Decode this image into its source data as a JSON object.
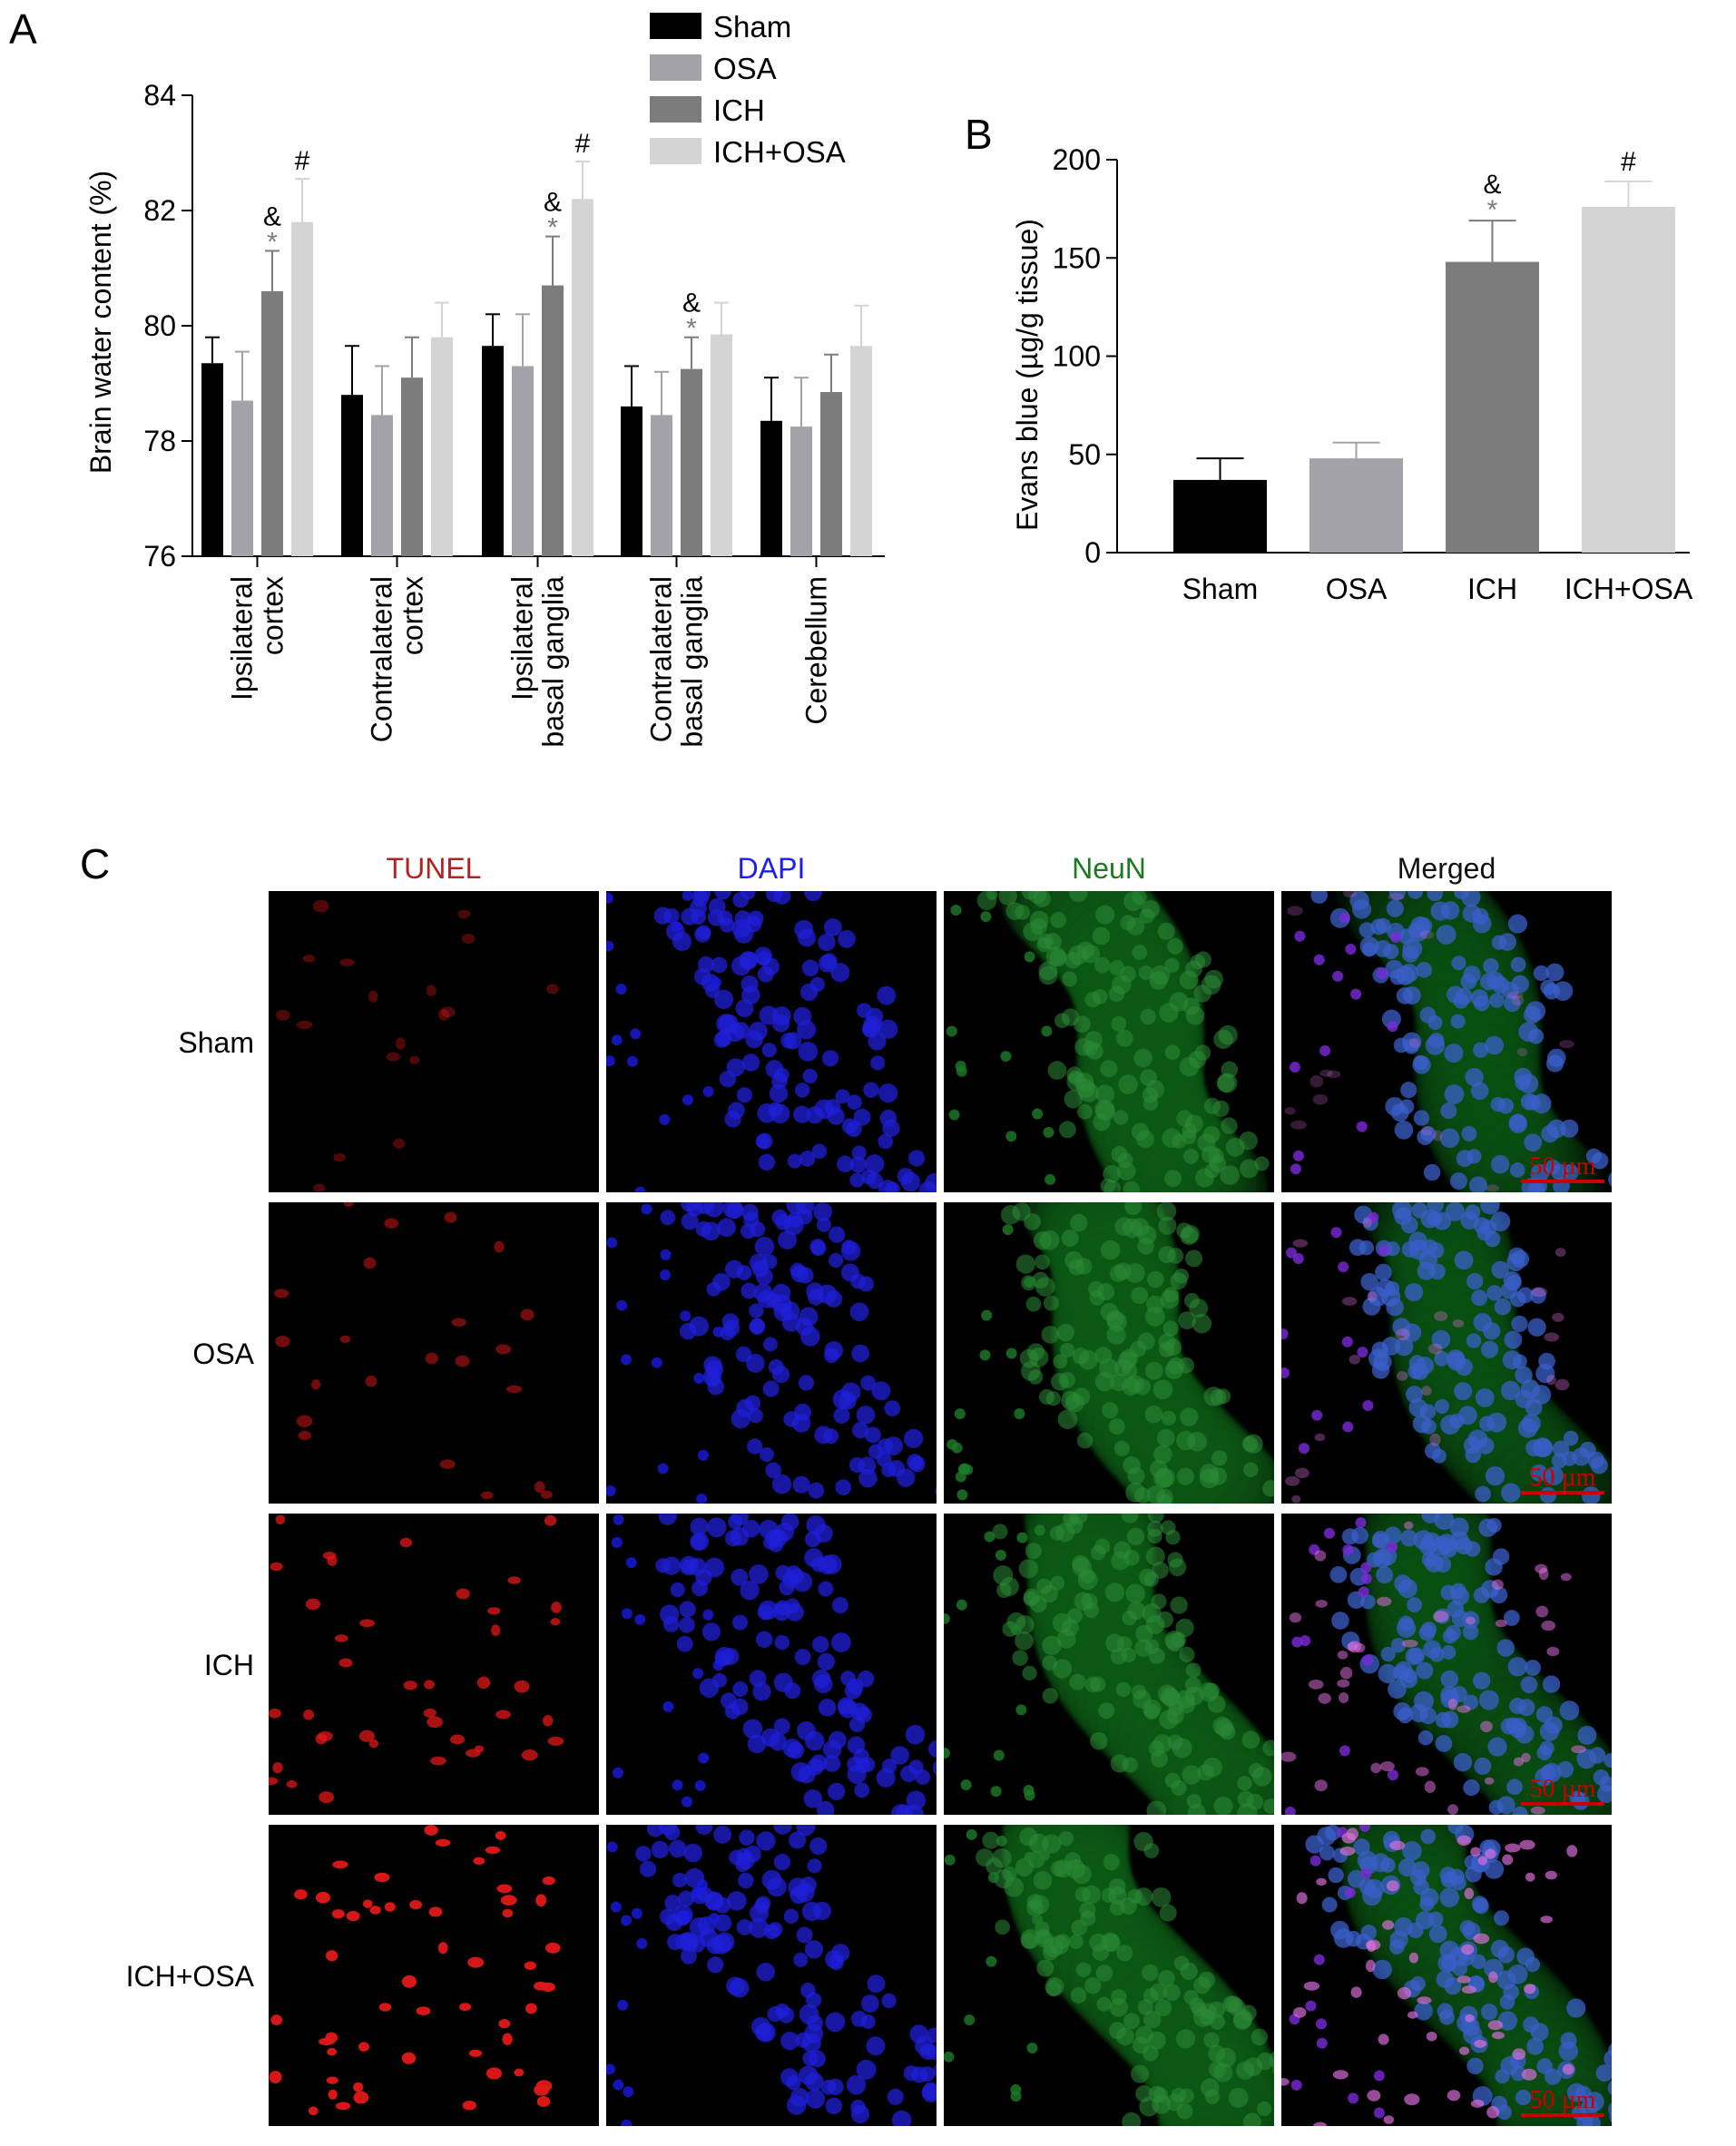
{
  "panels": {
    "A": "A",
    "B": "B",
    "C": "C"
  },
  "colors": {
    "Sham": "#000000",
    "OSA": "#a2a2a8",
    "ICH": "#7c7c7c",
    "ICH+OSA": "#d4d4d4"
  },
  "chart_data": [
    {
      "panel": "A",
      "type": "bar",
      "ylabel": "Brain water content (%)",
      "xlabel": "",
      "ylim": [
        76,
        84
      ],
      "yticks": [
        76,
        78,
        80,
        82,
        84
      ],
      "legend_position": "top-right",
      "categories": [
        [
          "Ipsilateral",
          "cortex"
        ],
        [
          "Contralateral",
          "cortex"
        ],
        [
          "Ipsilateral",
          "basal ganglia"
        ],
        [
          "Contralateral",
          "basal ganglia"
        ],
        [
          "Cerebellum"
        ]
      ],
      "series": [
        {
          "name": "Sham",
          "values": [
            79.35,
            78.8,
            79.65,
            78.6,
            78.35
          ],
          "error": [
            0.45,
            0.85,
            0.55,
            0.7,
            0.75
          ]
        },
        {
          "name": "OSA",
          "values": [
            78.7,
            78.45,
            79.3,
            78.45,
            78.25
          ],
          "error": [
            0.85,
            0.85,
            0.9,
            0.75,
            0.85
          ]
        },
        {
          "name": "ICH",
          "values": [
            80.6,
            79.1,
            80.7,
            79.25,
            78.85
          ],
          "error": [
            0.7,
            0.7,
            0.85,
            0.55,
            0.65
          ]
        },
        {
          "name": "ICH+OSA",
          "values": [
            81.8,
            79.8,
            82.2,
            79.85,
            79.65
          ],
          "error": [
            0.75,
            0.6,
            0.65,
            0.55,
            0.7
          ]
        }
      ],
      "annotations": [
        {
          "category": 0,
          "series": 2,
          "marks": [
            "&",
            "*"
          ]
        },
        {
          "category": 0,
          "series": 3,
          "marks": [
            "#"
          ]
        },
        {
          "category": 2,
          "series": 2,
          "marks": [
            "&",
            "*"
          ]
        },
        {
          "category": 2,
          "series": 3,
          "marks": [
            "#"
          ]
        },
        {
          "category": 3,
          "series": 2,
          "marks": [
            "&",
            "*"
          ]
        }
      ]
    },
    {
      "panel": "B",
      "type": "bar",
      "ylabel": "Evans blue (µg/g tissue)",
      "xlabel": "",
      "ylim": [
        0,
        200
      ],
      "yticks": [
        0,
        50,
        100,
        150,
        200
      ],
      "categories": [
        "Sham",
        "OSA",
        "ICH",
        "ICH+OSA"
      ],
      "values": [
        37,
        48,
        148,
        176
      ],
      "error": [
        11,
        8,
        21,
        13
      ],
      "annotations": [
        {
          "category": 2,
          "marks": [
            "&",
            "*"
          ]
        },
        {
          "category": 3,
          "marks": [
            "#"
          ]
        }
      ]
    }
  ],
  "microscopy": {
    "columns": [
      "TUNEL",
      "DAPI",
      "NeuN",
      "Merged"
    ],
    "column_colors": [
      "#b22222",
      "#1a1aff",
      "#1e7a1e",
      "#111111"
    ],
    "rows": [
      "Sham",
      "OSA",
      "ICH",
      "ICH+OSA"
    ],
    "scale_bar": "50 µm",
    "scale_color": "#cc0000"
  }
}
